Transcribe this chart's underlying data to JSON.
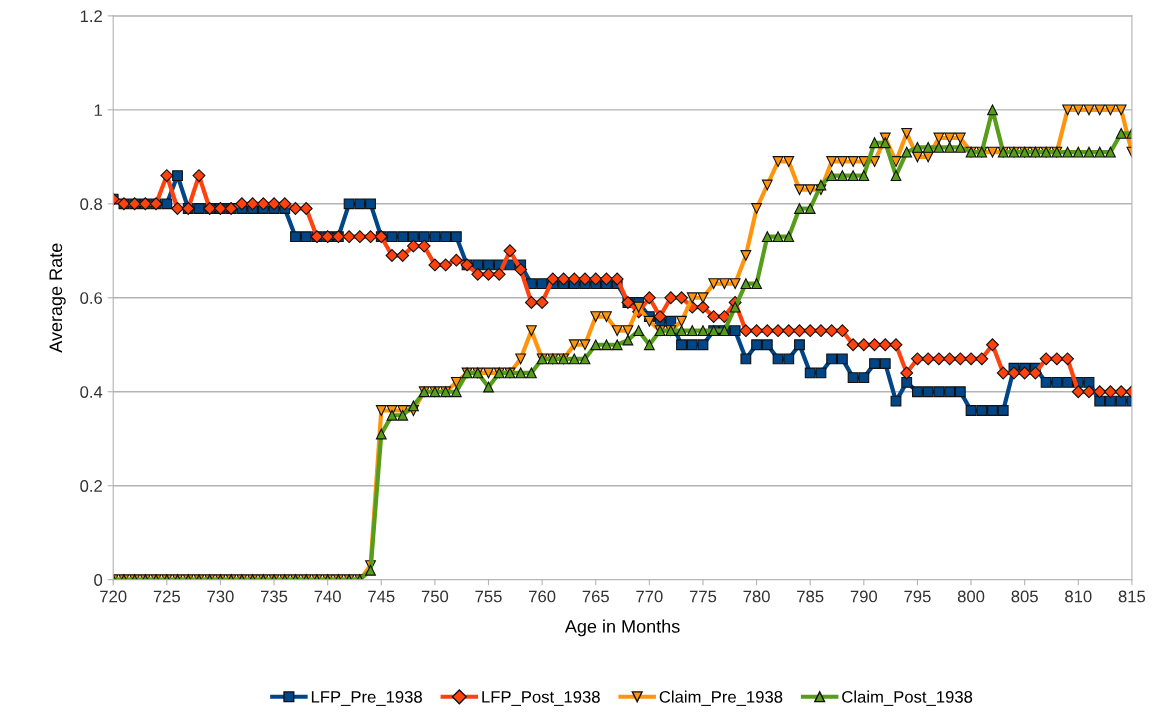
{
  "chart_data": {
    "type": "line",
    "xlabel": "Age in Months",
    "ylabel": "Average Rate",
    "x": [
      720,
      721,
      722,
      723,
      724,
      725,
      726,
      727,
      728,
      729,
      730,
      731,
      732,
      733,
      734,
      735,
      736,
      737,
      738,
      739,
      740,
      741,
      742,
      743,
      744,
      745,
      746,
      747,
      748,
      749,
      750,
      751,
      752,
      753,
      754,
      755,
      756,
      757,
      758,
      759,
      760,
      761,
      762,
      763,
      764,
      765,
      766,
      767,
      768,
      769,
      770,
      771,
      772,
      773,
      774,
      775,
      776,
      777,
      778,
      779,
      780,
      781,
      782,
      783,
      784,
      785,
      786,
      787,
      788,
      789,
      790,
      791,
      792,
      793,
      794,
      795,
      796,
      797,
      798,
      799,
      800,
      801,
      802,
      803,
      804,
      805,
      806,
      807,
      808,
      809,
      810,
      811,
      812,
      813,
      814,
      815
    ],
    "xlim": [
      720,
      815
    ],
    "xticks": [
      720,
      725,
      730,
      735,
      740,
      745,
      750,
      755,
      760,
      765,
      770,
      775,
      780,
      785,
      790,
      795,
      800,
      805,
      810,
      815
    ],
    "ylim": [
      0,
      1.2
    ],
    "yticks": [
      0,
      0.2,
      0.4,
      0.6,
      0.8,
      1,
      1.2
    ],
    "grid": "y",
    "legend": "bottom",
    "line_style": "solid",
    "series": [
      {
        "name": "LFP_Pre_1938",
        "color": "#004586",
        "marker": "square",
        "values": [
          0.81,
          0.8,
          0.8,
          0.8,
          0.8,
          0.8,
          0.86,
          0.79,
          0.79,
          0.79,
          0.79,
          0.79,
          0.79,
          0.79,
          0.79,
          0.79,
          0.79,
          0.73,
          0.73,
          0.73,
          0.73,
          0.73,
          0.8,
          0.8,
          0.8,
          0.73,
          0.73,
          0.73,
          0.73,
          0.73,
          0.73,
          0.73,
          0.73,
          0.67,
          0.67,
          0.67,
          0.67,
          0.67,
          0.67,
          0.63,
          0.63,
          0.63,
          0.63,
          0.63,
          0.63,
          0.63,
          0.63,
          0.63,
          0.59,
          0.59,
          0.56,
          0.55,
          0.55,
          0.5,
          0.5,
          0.5,
          0.53,
          0.53,
          0.53,
          0.47,
          0.5,
          0.5,
          0.47,
          0.47,
          0.5,
          0.44,
          0.44,
          0.47,
          0.47,
          0.43,
          0.43,
          0.46,
          0.46,
          0.38,
          0.42,
          0.4,
          0.4,
          0.4,
          0.4,
          0.4,
          0.36,
          0.36,
          0.36,
          0.36,
          0.45,
          0.45,
          0.45,
          0.42,
          0.42,
          0.42,
          0.42,
          0.42,
          0.38,
          0.38,
          0.38,
          0.38
        ]
      },
      {
        "name": "LFP_Post_1938",
        "color": "#ff420e",
        "marker": "diamond",
        "values": [
          0.81,
          0.8,
          0.8,
          0.8,
          0.8,
          0.86,
          0.79,
          0.79,
          0.86,
          0.79,
          0.79,
          0.79,
          0.8,
          0.8,
          0.8,
          0.8,
          0.8,
          0.79,
          0.79,
          0.73,
          0.73,
          0.73,
          0.73,
          0.73,
          0.73,
          0.73,
          0.69,
          0.69,
          0.71,
          0.71,
          0.67,
          0.67,
          0.68,
          0.67,
          0.65,
          0.65,
          0.65,
          0.7,
          0.66,
          0.59,
          0.59,
          0.64,
          0.64,
          0.64,
          0.64,
          0.64,
          0.64,
          0.64,
          0.59,
          0.57,
          0.6,
          0.56,
          0.6,
          0.6,
          0.58,
          0.58,
          0.56,
          0.56,
          0.59,
          0.53,
          0.53,
          0.53,
          0.53,
          0.53,
          0.53,
          0.53,
          0.53,
          0.53,
          0.53,
          0.5,
          0.5,
          0.5,
          0.5,
          0.5,
          0.44,
          0.47,
          0.47,
          0.47,
          0.47,
          0.47,
          0.47,
          0.47,
          0.5,
          0.44,
          0.44,
          0.44,
          0.44,
          0.47,
          0.47,
          0.47,
          0.4,
          0.4,
          0.4,
          0.4,
          0.4,
          0.4
        ]
      },
      {
        "name": "Claim_Pre_1938",
        "color": "#ff950e",
        "marker": "triangle_down",
        "values": [
          0,
          0,
          0,
          0,
          0,
          0,
          0,
          0,
          0,
          0,
          0,
          0,
          0,
          0,
          0,
          0,
          0,
          0,
          0,
          0,
          0,
          0,
          0,
          0,
          0.03,
          0.36,
          0.36,
          0.36,
          0.36,
          0.4,
          0.4,
          0.4,
          0.42,
          0.44,
          0.44,
          0.44,
          0.44,
          0.44,
          0.47,
          0.53,
          0.47,
          0.47,
          0.47,
          0.5,
          0.5,
          0.56,
          0.56,
          0.53,
          0.53,
          0.58,
          0.55,
          0.53,
          0.53,
          0.55,
          0.6,
          0.6,
          0.63,
          0.63,
          0.63,
          0.69,
          0.79,
          0.84,
          0.89,
          0.89,
          0.83,
          0.83,
          0.83,
          0.89,
          0.89,
          0.89,
          0.89,
          0.89,
          0.94,
          0.89,
          0.95,
          0.9,
          0.9,
          0.94,
          0.94,
          0.94,
          0.91,
          0.91,
          0.91,
          0.91,
          0.91,
          0.91,
          0.91,
          0.91,
          0.91,
          1.0,
          1.0,
          1.0,
          1.0,
          1.0,
          1.0,
          0.91
        ]
      },
      {
        "name": "Claim_Post_1938",
        "color": "#579d1c",
        "marker": "triangle",
        "values": [
          0,
          0,
          0,
          0,
          0,
          0,
          0,
          0,
          0,
          0,
          0,
          0,
          0,
          0,
          0,
          0,
          0,
          0,
          0,
          0,
          0,
          0,
          0,
          0,
          0.02,
          0.31,
          0.35,
          0.35,
          0.37,
          0.4,
          0.4,
          0.4,
          0.4,
          0.44,
          0.44,
          0.41,
          0.44,
          0.44,
          0.44,
          0.44,
          0.47,
          0.47,
          0.47,
          0.47,
          0.47,
          0.5,
          0.5,
          0.5,
          0.51,
          0.53,
          0.5,
          0.53,
          0.53,
          0.53,
          0.53,
          0.53,
          0.53,
          0.53,
          0.58,
          0.63,
          0.63,
          0.73,
          0.73,
          0.73,
          0.79,
          0.79,
          0.84,
          0.86,
          0.86,
          0.86,
          0.86,
          0.93,
          0.93,
          0.86,
          0.91,
          0.92,
          0.92,
          0.92,
          0.92,
          0.92,
          0.91,
          0.91,
          1.0,
          0.91,
          0.91,
          0.91,
          0.91,
          0.91,
          0.91,
          0.91,
          0.91,
          0.91,
          0.91,
          0.91,
          0.95,
          0.95
        ]
      }
    ]
  }
}
